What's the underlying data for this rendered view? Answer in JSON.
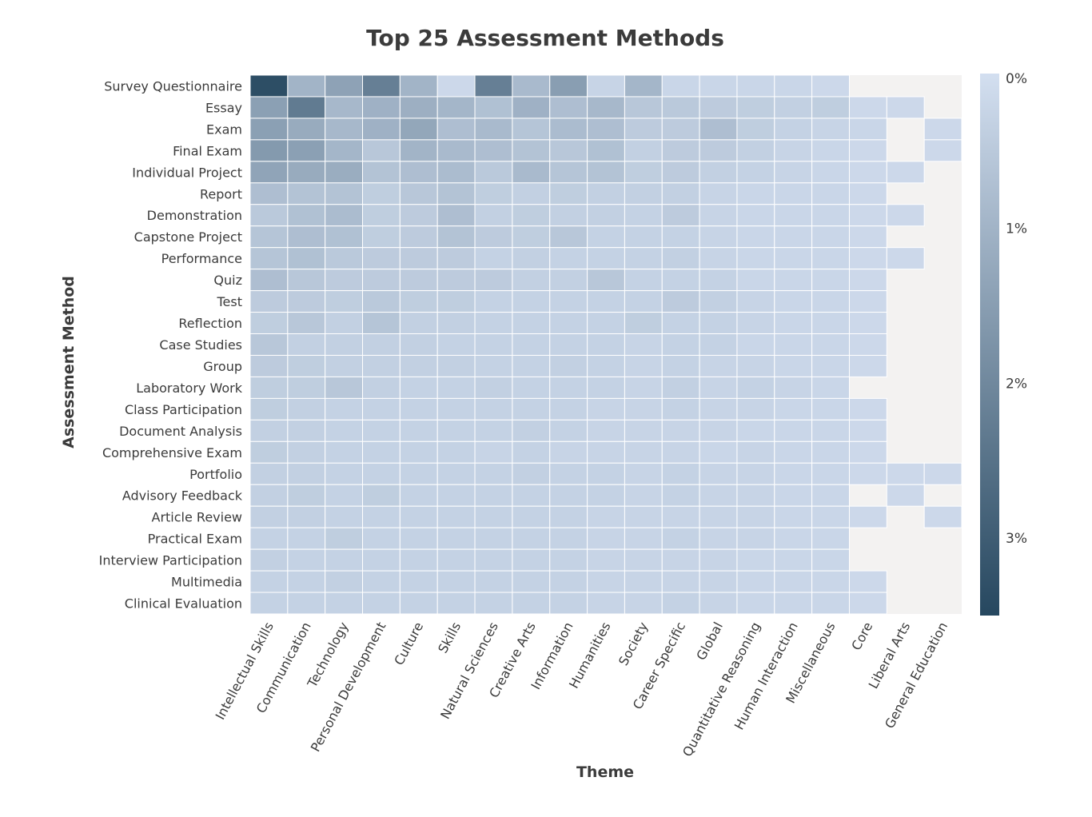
{
  "chart_data": {
    "type": "heatmap",
    "title": "Top 25 Assessment Methods",
    "xlabel": "Theme",
    "ylabel": "Assessment Method",
    "x_categories": [
      "Intellectual Skills",
      "Communication",
      "Technology",
      "Personal Development",
      "Culture",
      "Skills",
      "Natural Sciences",
      "Creative Arts",
      "Information",
      "Humanities",
      "Society",
      "Career Specific",
      "Global",
      "Quantitative Reasoning",
      "Human Interaction",
      "Miscellaneous",
      "Core",
      "Liberal Arts",
      "General Education"
    ],
    "y_categories": [
      "Survey Questionnaire",
      "Essay",
      "Exam",
      "Final Exam",
      "Individual Project",
      "Report",
      "Demonstration",
      "Capstone Project",
      "Performance",
      "Quiz",
      "Test",
      "Reflection",
      "Case Studies",
      "Group",
      "Laboratory Work",
      "Class Participation",
      "Document Analysis",
      "Comprehensive Exam",
      "Portfolio",
      "Advisory Feedback",
      "Article Review",
      "Practical Exam",
      "Interview Participation",
      "Multimedia",
      "Clinical Evaluation"
    ],
    "z_unit": "%",
    "values": [
      [
        3.35,
        1.0,
        1.4,
        2.2,
        1.0,
        0.15,
        2.2,
        0.85,
        1.5,
        0.25,
        0.95,
        0.2,
        0.2,
        0.2,
        0.2,
        0.15,
        null,
        null,
        null
      ],
      [
        1.45,
        2.3,
        0.9,
        1.05,
        1.1,
        0.95,
        0.7,
        1.05,
        0.75,
        0.9,
        0.55,
        0.5,
        0.45,
        0.4,
        0.35,
        0.4,
        0.15,
        0.15,
        null
      ],
      [
        1.45,
        1.2,
        0.9,
        1.05,
        1.3,
        0.75,
        0.85,
        0.6,
        0.8,
        0.75,
        0.45,
        0.45,
        0.75,
        0.4,
        0.3,
        0.25,
        0.2,
        null,
        0.15
      ],
      [
        1.6,
        1.45,
        0.95,
        0.55,
        1.0,
        0.85,
        0.75,
        0.65,
        0.55,
        0.7,
        0.35,
        0.45,
        0.45,
        0.35,
        0.25,
        0.2,
        0.15,
        null,
        0.15
      ],
      [
        1.35,
        1.2,
        1.15,
        0.65,
        0.75,
        0.8,
        0.5,
        0.85,
        0.6,
        0.65,
        0.4,
        0.45,
        0.35,
        0.3,
        0.25,
        0.2,
        0.15,
        0.15,
        null
      ],
      [
        0.75,
        0.65,
        0.65,
        0.4,
        0.55,
        0.65,
        0.4,
        0.35,
        0.4,
        0.35,
        0.35,
        0.35,
        0.25,
        0.2,
        0.2,
        0.2,
        0.15,
        null,
        null
      ],
      [
        0.5,
        0.7,
        0.8,
        0.4,
        0.45,
        0.75,
        0.35,
        0.4,
        0.35,
        0.35,
        0.3,
        0.45,
        0.25,
        0.2,
        0.2,
        0.2,
        0.15,
        0.15,
        null
      ],
      [
        0.6,
        0.75,
        0.7,
        0.4,
        0.45,
        0.65,
        0.45,
        0.4,
        0.55,
        0.3,
        0.3,
        0.3,
        0.25,
        0.2,
        0.2,
        0.2,
        0.15,
        null,
        null
      ],
      [
        0.6,
        0.7,
        0.5,
        0.45,
        0.45,
        0.45,
        0.3,
        0.35,
        0.3,
        0.3,
        0.3,
        0.35,
        0.25,
        0.2,
        0.2,
        0.2,
        0.15,
        0.15,
        null
      ],
      [
        0.75,
        0.55,
        0.45,
        0.45,
        0.45,
        0.45,
        0.45,
        0.35,
        0.35,
        0.55,
        0.3,
        0.3,
        0.3,
        0.2,
        0.2,
        0.2,
        0.15,
        null,
        null
      ],
      [
        0.45,
        0.45,
        0.4,
        0.5,
        0.4,
        0.4,
        0.3,
        0.3,
        0.3,
        0.3,
        0.3,
        0.45,
        0.35,
        0.25,
        0.2,
        0.2,
        0.15,
        null,
        null
      ],
      [
        0.4,
        0.55,
        0.35,
        0.6,
        0.35,
        0.35,
        0.3,
        0.3,
        0.3,
        0.3,
        0.4,
        0.3,
        0.3,
        0.25,
        0.2,
        0.2,
        0.15,
        null,
        null
      ],
      [
        0.55,
        0.35,
        0.35,
        0.35,
        0.35,
        0.3,
        0.3,
        0.3,
        0.3,
        0.3,
        0.25,
        0.3,
        0.3,
        0.2,
        0.2,
        0.2,
        0.15,
        null,
        null
      ],
      [
        0.45,
        0.4,
        0.35,
        0.35,
        0.35,
        0.35,
        0.3,
        0.3,
        0.35,
        0.3,
        0.25,
        0.3,
        0.25,
        0.25,
        0.2,
        0.2,
        0.15,
        null,
        null
      ],
      [
        0.4,
        0.4,
        0.55,
        0.35,
        0.3,
        0.3,
        0.35,
        0.3,
        0.3,
        0.3,
        0.25,
        0.35,
        0.25,
        0.3,
        0.25,
        0.2,
        null,
        null,
        null
      ],
      [
        0.4,
        0.35,
        0.3,
        0.3,
        0.3,
        0.3,
        0.3,
        0.3,
        0.3,
        0.25,
        0.25,
        0.3,
        0.25,
        0.25,
        0.2,
        0.2,
        0.15,
        null,
        null
      ],
      [
        0.35,
        0.35,
        0.3,
        0.3,
        0.3,
        0.3,
        0.3,
        0.35,
        0.3,
        0.25,
        0.25,
        0.25,
        0.25,
        0.2,
        0.2,
        0.2,
        0.15,
        null,
        null
      ],
      [
        0.4,
        0.35,
        0.3,
        0.3,
        0.3,
        0.3,
        0.25,
        0.3,
        0.25,
        0.25,
        0.25,
        0.25,
        0.2,
        0.25,
        0.2,
        0.2,
        0.15,
        null,
        null
      ],
      [
        0.35,
        0.35,
        0.3,
        0.3,
        0.3,
        0.3,
        0.3,
        0.35,
        0.3,
        0.3,
        0.25,
        0.3,
        0.25,
        0.25,
        0.2,
        0.2,
        0.15,
        0.15,
        0.15
      ],
      [
        0.35,
        0.4,
        0.3,
        0.4,
        0.3,
        0.3,
        0.3,
        0.3,
        0.3,
        0.3,
        0.25,
        0.3,
        0.25,
        0.25,
        0.2,
        0.2,
        null,
        0.15,
        null
      ],
      [
        0.35,
        0.35,
        0.3,
        0.3,
        0.3,
        0.3,
        0.3,
        0.3,
        0.3,
        0.25,
        0.25,
        0.25,
        0.25,
        0.25,
        0.2,
        0.2,
        0.15,
        null,
        0.15
      ],
      [
        0.3,
        0.3,
        0.4,
        0.3,
        0.3,
        0.3,
        0.3,
        0.3,
        0.3,
        0.25,
        0.25,
        0.3,
        0.25,
        0.25,
        0.2,
        0.2,
        null,
        null,
        null
      ],
      [
        0.35,
        0.3,
        0.3,
        0.3,
        0.3,
        0.3,
        0.3,
        0.3,
        0.3,
        0.25,
        0.25,
        0.25,
        0.25,
        0.2,
        0.2,
        0.2,
        null,
        null,
        null
      ],
      [
        0.3,
        0.3,
        0.35,
        0.3,
        0.3,
        0.3,
        0.3,
        0.3,
        0.3,
        0.25,
        0.25,
        0.25,
        0.25,
        0.2,
        0.2,
        0.2,
        0.15,
        null,
        null
      ],
      [
        0.3,
        0.3,
        0.3,
        0.3,
        0.3,
        0.3,
        0.3,
        0.3,
        0.3,
        0.25,
        0.25,
        0.3,
        0.25,
        0.2,
        0.2,
        0.2,
        0.15,
        null,
        null
      ]
    ],
    "colorbar": {
      "range": [
        0,
        3.5
      ],
      "ticks": [
        0,
        1,
        2,
        3
      ],
      "tick_labels": [
        "0%",
        "1%",
        "2%",
        "3%"
      ],
      "low_color": "#d3dff0",
      "high_color": "#26475f"
    },
    "missing_color": "#f3f2f1",
    "grid": false
  }
}
